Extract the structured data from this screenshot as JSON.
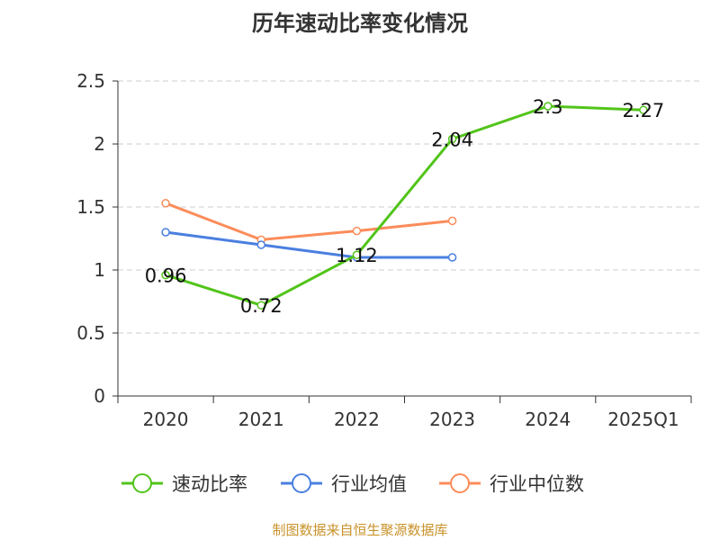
{
  "chart_data": {
    "type": "line",
    "title": "历年速动比率变化情况",
    "categories": [
      "2020",
      "2021",
      "2022",
      "2023",
      "2024",
      "2025Q1"
    ],
    "ylim": [
      0,
      2.5
    ],
    "yticks": [
      "0",
      "0.5",
      "1",
      "1.5",
      "2",
      "2.5"
    ],
    "grid": true,
    "legend_placement": "bottom",
    "series": [
      {
        "name": "速动比率",
        "color": "#52c41a",
        "values": [
          0.96,
          0.72,
          1.12,
          2.04,
          2.3,
          2.27
        ],
        "labels": [
          "0.96",
          "0.72",
          "1.12",
          "2.04",
          "2.3",
          "2.27"
        ]
      },
      {
        "name": "行业均值",
        "color": "#4a7fe0",
        "values": [
          1.3,
          1.2,
          1.1,
          1.1,
          null,
          null
        ]
      },
      {
        "name": "行业中位数",
        "color": "#fb8c5a",
        "values": [
          1.53,
          1.24,
          1.31,
          1.39,
          null,
          null
        ]
      }
    ]
  },
  "source": "制图数据来自恒生聚源数据库"
}
